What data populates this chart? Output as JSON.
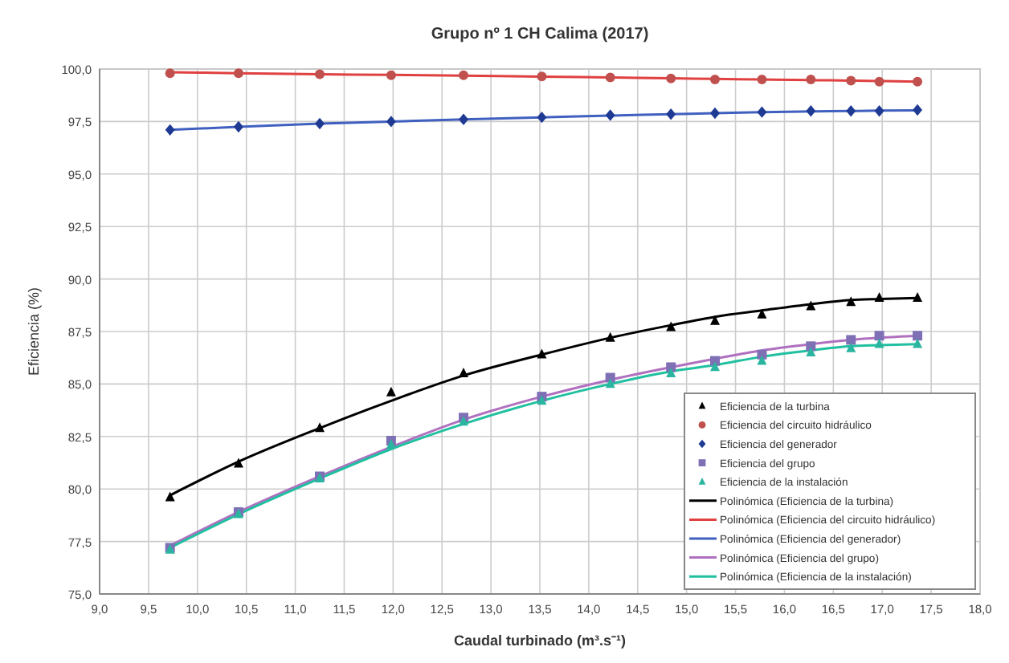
{
  "chart_data": {
    "type": "scatter",
    "title": "Grupo nº 1 CH Calima (2017)",
    "xlabel": "Caudal turbinado (m³.s⁻¹)",
    "ylabel": "Eficiencia (%)",
    "x": [
      9.72,
      10.42,
      11.25,
      11.98,
      12.72,
      13.52,
      14.22,
      14.84,
      15.29,
      15.77,
      16.27,
      16.68,
      16.97,
      17.36
    ],
    "series": [
      {
        "name": "Eficiencia de la turbina",
        "marker": "triangle",
        "color": "#000000",
        "values": [
          79.6,
          81.2,
          82.9,
          84.6,
          85.5,
          86.4,
          87.2,
          87.7,
          88.0,
          88.3,
          88.7,
          88.9,
          89.1,
          89.1
        ]
      },
      {
        "name": "Eficiencia del circuito hidráulico",
        "marker": "circle",
        "color": "#c0504d",
        "values": [
          99.8,
          99.8,
          99.75,
          99.7,
          99.7,
          99.65,
          99.6,
          99.55,
          99.5,
          99.5,
          99.5,
          99.45,
          99.4,
          99.4
        ]
      },
      {
        "name": "Eficiencia del generador",
        "marker": "diamond",
        "color": "#1f3a93",
        "values": [
          97.1,
          97.25,
          97.4,
          97.5,
          97.6,
          97.7,
          97.8,
          97.85,
          97.9,
          97.95,
          98.0,
          98.0,
          98.0,
          98.05
        ]
      },
      {
        "name": "Eficiencia del grupo",
        "marker": "square",
        "color": "#7f6fb5",
        "values": [
          77.2,
          78.9,
          80.6,
          82.3,
          83.4,
          84.4,
          85.3,
          85.8,
          86.1,
          86.4,
          86.8,
          87.1,
          87.3,
          87.3
        ]
      },
      {
        "name": "Eficiencia de la instalación",
        "marker": "triangle",
        "color": "#2ab5a0",
        "values": [
          77.1,
          78.8,
          80.5,
          82.1,
          83.2,
          84.2,
          85.0,
          85.5,
          85.8,
          86.1,
          86.5,
          86.7,
          86.9,
          86.9
        ]
      },
      {
        "name": "Polinómica (Eficiencia de la turbina)",
        "type": "line",
        "marker": "none",
        "color": "#000000",
        "values": [
          79.7,
          81.3,
          82.9,
          84.2,
          85.4,
          86.4,
          87.2,
          87.8,
          88.2,
          88.5,
          88.8,
          89.0,
          89.05,
          89.1
        ]
      },
      {
        "name": "Polinómica (Eficiencia del circuito hidráulico)",
        "type": "line",
        "marker": "none",
        "color": "#e04040",
        "values": [
          99.85,
          99.8,
          99.75,
          99.72,
          99.68,
          99.64,
          99.6,
          99.56,
          99.53,
          99.5,
          99.47,
          99.45,
          99.43,
          99.4
        ]
      },
      {
        "name": "Polinómica (Eficiencia del generador)",
        "type": "line",
        "marker": "none",
        "color": "#4060c0",
        "values": [
          97.1,
          97.25,
          97.4,
          97.5,
          97.6,
          97.7,
          97.78,
          97.85,
          97.9,
          97.95,
          97.98,
          98.0,
          98.02,
          98.03
        ]
      },
      {
        "name": "Polinómica (Eficiencia del grupo)",
        "type": "line",
        "marker": "none",
        "color": "#b070c0",
        "values": [
          77.3,
          78.9,
          80.6,
          82.0,
          83.3,
          84.4,
          85.2,
          85.8,
          86.2,
          86.6,
          86.9,
          87.1,
          87.2,
          87.3
        ]
      },
      {
        "name": "Polinómica (Eficiencia de la instalación)",
        "type": "line",
        "marker": "none",
        "color": "#20c0a0",
        "values": [
          77.2,
          78.8,
          80.5,
          81.9,
          83.1,
          84.2,
          85.0,
          85.6,
          85.9,
          86.3,
          86.6,
          86.8,
          86.85,
          86.9
        ]
      }
    ],
    "xlim": [
      9,
      18
    ],
    "xticks": [
      {
        "value": 9,
        "label": "9,0"
      },
      {
        "value": 9.5,
        "label": "9,5"
      },
      {
        "value": 10,
        "label": "10,0"
      },
      {
        "value": 10.5,
        "label": "10,5"
      },
      {
        "value": 11,
        "label": "11,0"
      },
      {
        "value": 11.5,
        "label": "11,5"
      },
      {
        "value": 12,
        "label": "12,0"
      },
      {
        "value": 12.5,
        "label": "12,5"
      },
      {
        "value": 13,
        "label": "13,0"
      },
      {
        "value": 13.5,
        "label": "13,5"
      },
      {
        "value": 14,
        "label": "14,0"
      },
      {
        "value": 14.5,
        "label": "14,5"
      },
      {
        "value": 15,
        "label": "15,0"
      },
      {
        "value": 15.5,
        "label": "15,5"
      },
      {
        "value": 16,
        "label": "16,0"
      },
      {
        "value": 16.5,
        "label": "16,5"
      },
      {
        "value": 17,
        "label": "17,0"
      },
      {
        "value": 17.5,
        "label": "17,5"
      },
      {
        "value": 18,
        "label": "18,0"
      }
    ],
    "ylim": [
      75,
      100
    ],
    "yticks": [
      {
        "value": 75,
        "label": "75,0"
      },
      {
        "value": 77.5,
        "label": "77,5"
      },
      {
        "value": 80,
        "label": "80,0"
      },
      {
        "value": 82.5,
        "label": "82,5"
      },
      {
        "value": 85,
        "label": "85,0"
      },
      {
        "value": 87.5,
        "label": "87,5"
      },
      {
        "value": 90,
        "label": "90,0"
      },
      {
        "value": 92.5,
        "label": "92,5"
      },
      {
        "value": 95,
        "label": "95,0"
      },
      {
        "value": 97.5,
        "label": "97,5"
      },
      {
        "value": 100,
        "label": "100,0"
      }
    ],
    "grid": true,
    "legend": "bottom right"
  }
}
